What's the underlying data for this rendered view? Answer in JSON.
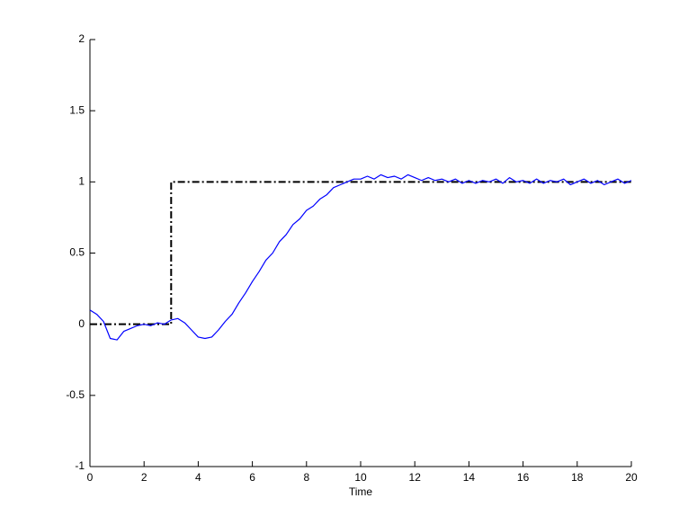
{
  "chart_data": {
    "type": "line",
    "xlabel": "Time",
    "xlim": [
      0,
      20
    ],
    "xticks": [
      0,
      2,
      4,
      6,
      8,
      10,
      12,
      14,
      16,
      18,
      20
    ],
    "ylim": [
      -1,
      2
    ],
    "yticks": [
      -1,
      -0.5,
      0,
      0.5,
      1,
      1.5,
      2
    ],
    "series": [
      {
        "color": "#000000",
        "dash": "dash-dot",
        "x": [
          0,
          3,
          3,
          20
        ],
        "values": [
          0,
          0,
          1,
          1
        ]
      },
      {
        "color": "#0000ff",
        "dash": "solid",
        "x": [
          0,
          0.25,
          0.5,
          0.75,
          1,
          1.25,
          1.5,
          1.75,
          2,
          2.25,
          2.5,
          2.75,
          3,
          3.25,
          3.5,
          3.75,
          4,
          4.25,
          4.5,
          4.75,
          5,
          5.25,
          5.5,
          5.75,
          6,
          6.25,
          6.5,
          6.75,
          7,
          7.25,
          7.5,
          7.75,
          8,
          8.25,
          8.5,
          8.75,
          9,
          9.25,
          9.5,
          9.75,
          10,
          10.25,
          10.5,
          10.75,
          11,
          11.25,
          11.5,
          11.75,
          12,
          12.25,
          12.5,
          12.75,
          13,
          13.25,
          13.5,
          13.75,
          14,
          14.25,
          14.5,
          14.75,
          15,
          15.25,
          15.5,
          15.75,
          16,
          16.25,
          16.5,
          16.75,
          17,
          17.25,
          17.5,
          17.75,
          18,
          18.25,
          18.5,
          18.75,
          19,
          19.25,
          19.5,
          19.75,
          20
        ],
        "values": [
          0.1,
          0.07,
          0.02,
          -0.1,
          -0.11,
          -0.05,
          -0.03,
          -0.01,
          0.0,
          -0.01,
          0.01,
          0.0,
          0.03,
          0.04,
          0.01,
          -0.04,
          -0.09,
          -0.1,
          -0.09,
          -0.04,
          0.02,
          0.07,
          0.15,
          0.22,
          0.3,
          0.37,
          0.45,
          0.5,
          0.58,
          0.63,
          0.7,
          0.74,
          0.8,
          0.83,
          0.88,
          0.91,
          0.96,
          0.98,
          1.0,
          1.02,
          1.02,
          1.04,
          1.02,
          1.05,
          1.03,
          1.04,
          1.02,
          1.05,
          1.03,
          1.01,
          1.03,
          1.01,
          1.02,
          1.0,
          1.02,
          0.99,
          1.01,
          0.99,
          1.01,
          1.0,
          1.02,
          0.99,
          1.03,
          1.0,
          1.01,
          0.99,
          1.02,
          0.99,
          1.01,
          1.0,
          1.02,
          0.98,
          1.0,
          1.02,
          0.99,
          1.01,
          0.98,
          1.0,
          1.02,
          0.99,
          1.01
        ]
      }
    ]
  }
}
